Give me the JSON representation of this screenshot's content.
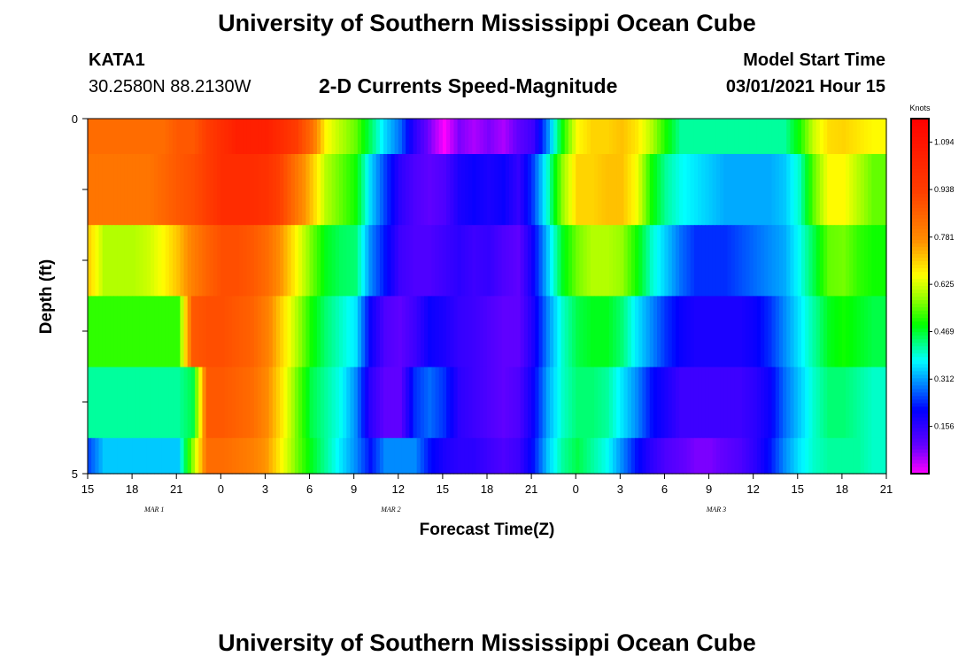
{
  "header": {
    "title": "University of Southern Mississippi Ocean Cube",
    "station": "KATA1",
    "coords": "30.2580N 88.2130W",
    "subtitle": "2-D Currents Speed-Magnitude",
    "model_label": "Model Start Time",
    "model_time": "03/01/2021 Hour 15"
  },
  "footer": {
    "title": "University of Southern Mississippi Ocean Cube"
  },
  "chart_data": {
    "type": "heatmap",
    "title": "2-D Currents Speed-Magnitude",
    "xlabel": "Forecast Time(Z)",
    "ylabel": "Depth (ft)",
    "x_tick_labels": [
      "15",
      "18",
      "21",
      "0",
      "3",
      "6",
      "9",
      "12",
      "15",
      "18",
      "21",
      "0",
      "3",
      "6",
      "9",
      "12",
      "15",
      "18",
      "21"
    ],
    "date_labels": [
      {
        "text": "MAR 1",
        "hour_index": 4.5
      },
      {
        "text": "MAR 2",
        "hour_index": 20.5
      },
      {
        "text": "MAR 3",
        "hour_index": 42.5
      }
    ],
    "y_tick_labels": [
      "0",
      "5"
    ],
    "ylim": [
      0,
      5
    ],
    "x_hours": 54,
    "depth_layers": 6,
    "colorbar": {
      "title": "Knots",
      "labels": [
        "1.094",
        "0.938",
        "0.781",
        "0.625",
        "0.469",
        "0.312",
        "0.156"
      ],
      "range": [
        0,
        1.172
      ]
    },
    "values": [
      [
        0.84,
        0.84,
        0.84,
        0.84,
        0.84,
        0.84,
        0.88,
        0.88,
        0.94,
        1.0,
        1.05,
        1.05,
        1.05,
        1.0,
        0.94,
        0.84,
        0.66,
        0.6,
        0.55,
        0.45,
        0.35,
        0.28,
        0.16,
        0.08,
        0.0,
        0.08,
        0.05,
        0.08,
        0.05,
        0.1,
        0.14,
        0.3,
        0.5,
        0.66,
        0.7,
        0.7,
        0.72,
        0.68,
        0.6,
        0.5,
        0.42,
        0.42,
        0.42,
        0.42,
        0.42,
        0.42,
        0.42,
        0.42,
        0.5,
        0.62,
        0.69,
        0.7,
        0.68,
        0.66
      ],
      [
        0.82,
        0.82,
        0.82,
        0.82,
        0.82,
        0.85,
        0.88,
        0.9,
        0.94,
        1.0,
        1.0,
        1.0,
        0.98,
        0.92,
        0.82,
        0.72,
        0.6,
        0.55,
        0.5,
        0.35,
        0.25,
        0.16,
        0.12,
        0.1,
        0.12,
        0.18,
        0.2,
        0.18,
        0.2,
        0.15,
        0.25,
        0.4,
        0.58,
        0.7,
        0.7,
        0.72,
        0.72,
        0.65,
        0.5,
        0.42,
        0.38,
        0.36,
        0.34,
        0.32,
        0.32,
        0.32,
        0.32,
        0.34,
        0.4,
        0.55,
        0.66,
        0.66,
        0.6,
        0.55
      ],
      [
        0.7,
        0.6,
        0.6,
        0.6,
        0.62,
        0.66,
        0.72,
        0.8,
        0.86,
        0.9,
        0.9,
        0.88,
        0.84,
        0.76,
        0.66,
        0.56,
        0.48,
        0.45,
        0.44,
        0.3,
        0.22,
        0.14,
        0.12,
        0.12,
        0.14,
        0.16,
        0.14,
        0.15,
        0.12,
        0.1,
        0.2,
        0.34,
        0.48,
        0.56,
        0.6,
        0.6,
        0.58,
        0.5,
        0.4,
        0.34,
        0.28,
        0.24,
        0.24,
        0.24,
        0.26,
        0.28,
        0.3,
        0.32,
        0.38,
        0.46,
        0.55,
        0.56,
        0.52,
        0.5
      ],
      [
        0.52,
        0.52,
        0.52,
        0.52,
        0.52,
        0.52,
        0.52,
        0.88,
        0.9,
        0.9,
        0.88,
        0.86,
        0.8,
        0.7,
        0.6,
        0.5,
        0.44,
        0.4,
        0.36,
        0.2,
        0.12,
        0.1,
        0.14,
        0.2,
        0.18,
        0.15,
        0.14,
        0.12,
        0.1,
        0.1,
        0.18,
        0.3,
        0.4,
        0.46,
        0.48,
        0.48,
        0.44,
        0.36,
        0.3,
        0.24,
        0.2,
        0.18,
        0.18,
        0.18,
        0.18,
        0.2,
        0.24,
        0.3,
        0.36,
        0.42,
        0.48,
        0.5,
        0.48,
        0.46
      ],
      [
        0.42,
        0.42,
        0.42,
        0.42,
        0.42,
        0.42,
        0.42,
        0.46,
        0.88,
        0.88,
        0.86,
        0.84,
        0.78,
        0.68,
        0.56,
        0.46,
        0.42,
        0.38,
        0.3,
        0.16,
        0.1,
        0.1,
        0.24,
        0.28,
        0.24,
        0.16,
        0.14,
        0.12,
        0.1,
        0.12,
        0.2,
        0.32,
        0.4,
        0.44,
        0.44,
        0.42,
        0.36,
        0.3,
        0.22,
        0.18,
        0.14,
        0.14,
        0.14,
        0.14,
        0.14,
        0.16,
        0.2,
        0.28,
        0.34,
        0.4,
        0.44,
        0.44,
        0.42,
        0.4
      ],
      [
        0.26,
        0.34,
        0.34,
        0.34,
        0.34,
        0.34,
        0.34,
        0.58,
        0.84,
        0.84,
        0.82,
        0.8,
        0.76,
        0.66,
        0.56,
        0.48,
        0.42,
        0.36,
        0.3,
        0.22,
        0.3,
        0.3,
        0.3,
        0.22,
        0.18,
        0.16,
        0.16,
        0.14,
        0.12,
        0.14,
        0.22,
        0.34,
        0.42,
        0.46,
        0.42,
        0.38,
        0.3,
        0.22,
        0.16,
        0.12,
        0.1,
        0.08,
        0.08,
        0.1,
        0.12,
        0.16,
        0.22,
        0.3,
        0.36,
        0.4,
        0.42,
        0.42,
        0.42,
        0.4
      ]
    ]
  }
}
